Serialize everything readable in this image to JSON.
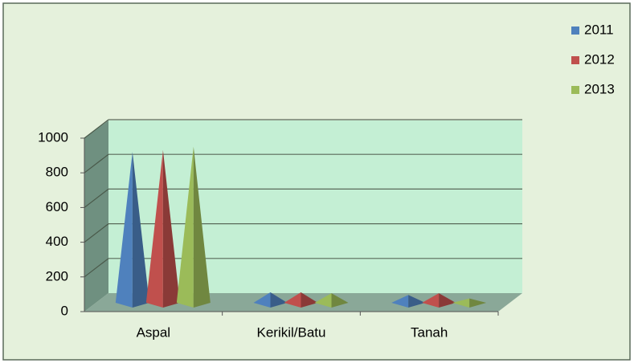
{
  "chart_data": {
    "type": "pyramid3d",
    "categories": [
      "Aspal",
      "Kerikil/Batu",
      "Tanah"
    ],
    "series": [
      {
        "name": "2011",
        "color": "#4f81bd",
        "values": [
          870,
          60,
          45
        ]
      },
      {
        "name": "2012",
        "color": "#c0504d",
        "values": [
          880,
          60,
          55
        ]
      },
      {
        "name": "2013",
        "color": "#9bbb59",
        "values": [
          900,
          55,
          25
        ]
      }
    ],
    "ylim": [
      0,
      1000
    ],
    "yticks": [
      0,
      200,
      400,
      600,
      800,
      1000
    ],
    "grid": true,
    "legend": "right"
  }
}
